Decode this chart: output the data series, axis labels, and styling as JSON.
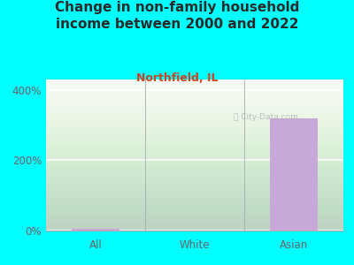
{
  "title": "Change in non-family household\nincome between 2000 and 2022",
  "subtitle": "Northfield, IL",
  "categories": [
    "All",
    "White",
    "Asian"
  ],
  "values": [
    4,
    0.5,
    320
  ],
  "bar_color": "#c8a8d8",
  "background_color": "#00FFFF",
  "plot_bg_gradient_top": "#d8edd8",
  "plot_bg_gradient_bottom": "#f5fbf2",
  "title_color": "#2a2a2a",
  "subtitle_color": "#cc4422",
  "tick_label_color": "#666666",
  "yticks": [
    0,
    200,
    400
  ],
  "ylim": [
    0,
    430
  ],
  "title_fontsize": 11,
  "subtitle_fontsize": 9,
  "tick_fontsize": 8.5,
  "watermark": "City-Data.com",
  "watermark_color": "#aaaaaa"
}
